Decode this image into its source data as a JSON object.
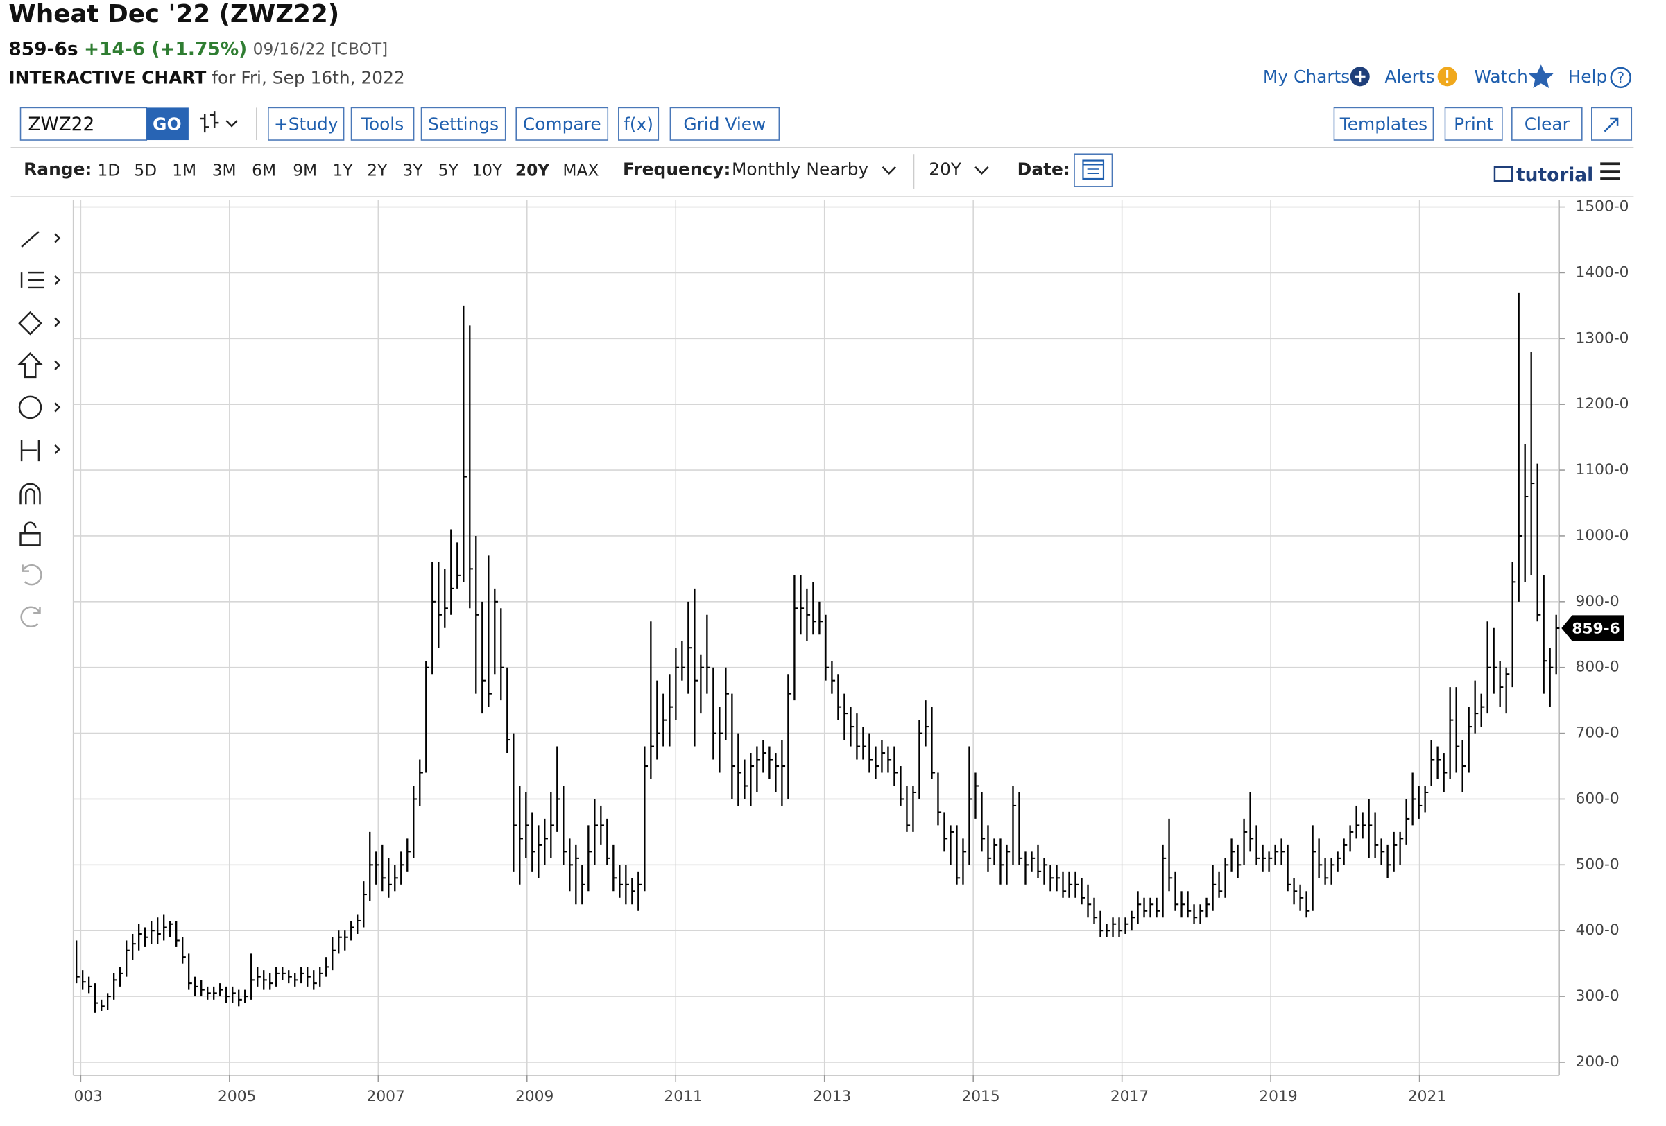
{
  "header": {
    "title": "Wheat Dec '22 (ZWZ22)",
    "price": "859-6s",
    "change": "+14-6 (+1.75%)",
    "meta": "09/16/22 [CBOT]",
    "chart_label": "INTERACTIVE CHART",
    "chart_date": "for Fri, Sep 16th, 2022"
  },
  "top_links": [
    "My Charts",
    "Alerts",
    "Watch",
    "Help"
  ],
  "toolbar": {
    "symbol": "ZWZ22",
    "go": "GO",
    "buttons": [
      "+Study",
      "Tools",
      "Settings",
      "Compare",
      "f(x)",
      "Grid View"
    ],
    "right_buttons": [
      "Templates",
      "Print",
      "Clear"
    ]
  },
  "range_bar": {
    "label": "Range:",
    "ranges": [
      "1D",
      "5D",
      "1M",
      "3M",
      "6M",
      "9M",
      "1Y",
      "2Y",
      "3Y",
      "5Y",
      "10Y",
      "20Y",
      "MAX"
    ],
    "active": "20Y",
    "frequency_label": "Frequency:",
    "frequency": "Monthly Nearby",
    "period": "20Y",
    "date_label": "Date:",
    "tutorial": "tutorial"
  },
  "chart_data": {
    "type": "ohlc",
    "color": "#000000",
    "grid": true,
    "xlim": [
      2002.9,
      2022.88
    ],
    "xticks": [
      {
        "value": 2003,
        "label": "003"
      },
      2005,
      2007,
      2009,
      2011,
      2013,
      2015,
      2017,
      2019,
      2021
    ],
    "ylim": [
      180,
      1510
    ],
    "yticks": [
      {
        "value": 200,
        "label": "200-0"
      },
      {
        "value": 300,
        "label": "300-0"
      },
      {
        "value": 400,
        "label": "400-0"
      },
      {
        "value": 500,
        "label": "500-0"
      },
      {
        "value": 600,
        "label": "600-0"
      },
      {
        "value": 700,
        "label": "700-0"
      },
      {
        "value": 800,
        "label": "800-0"
      },
      {
        "value": 900,
        "label": "900-0"
      },
      {
        "value": 1000,
        "label": "1000-0"
      },
      {
        "value": 1100,
        "label": "1100-0"
      },
      {
        "value": 1200,
        "label": "1200-0"
      },
      {
        "value": 1300,
        "label": "1300-0"
      },
      {
        "value": 1400,
        "label": "1400-0"
      },
      {
        "value": 1500,
        "label": "1500-0"
      }
    ],
    "high": [
      385,
      340,
      330,
      320,
      295,
      305,
      335,
      345,
      385,
      395,
      410,
      405,
      415,
      420,
      425,
      415,
      415,
      390,
      365,
      330,
      325,
      315,
      315,
      320,
      315,
      315,
      310,
      310,
      365,
      345,
      340,
      335,
      345,
      345,
      340,
      335,
      345,
      345,
      340,
      345,
      360,
      390,
      400,
      400,
      415,
      425,
      475,
      550,
      520,
      530,
      510,
      500,
      520,
      540,
      620,
      660,
      810,
      960,
      960,
      950,
      1010,
      990,
      1350,
      1320,
      1000,
      900,
      970,
      920,
      890,
      800,
      700,
      620,
      610,
      580,
      560,
      570,
      610,
      680,
      620,
      540,
      530,
      500,
      560,
      600,
      590,
      570,
      530,
      500,
      500,
      480,
      490,
      680,
      870,
      780,
      760,
      790,
      830,
      840,
      900,
      920,
      820,
      880,
      800,
      740,
      800,
      760,
      700,
      660,
      670,
      680,
      690,
      680,
      670,
      690,
      790,
      940,
      940,
      920,
      930,
      900,
      880,
      810,
      790,
      760,
      740,
      730,
      710,
      700,
      680,
      690,
      680,
      680,
      650,
      620,
      620,
      720,
      750,
      740,
      640,
      580,
      560,
      560,
      540,
      680,
      640,
      610,
      560,
      540,
      540,
      530,
      620,
      610,
      520,
      520,
      530,
      510,
      500,
      500,
      490,
      490,
      490,
      480,
      470,
      450,
      430,
      410,
      420,
      420,
      420,
      430,
      460,
      450,
      450,
      450,
      530,
      570,
      490,
      460,
      460,
      440,
      440,
      450,
      500,
      490,
      510,
      540,
      530,
      570,
      610,
      560,
      530,
      520,
      530,
      540,
      530,
      480,
      470,
      460,
      560,
      540,
      510,
      510,
      520,
      540,
      560,
      590,
      580,
      600,
      580,
      540,
      530,
      550,
      550,
      600,
      640,
      620,
      620,
      690,
      680,
      670,
      770,
      770,
      690,
      740,
      780,
      760,
      870,
      860,
      810,
      800,
      960,
      1370,
      1140,
      1280,
      1110,
      940,
      830,
      880
    ],
    "low": [
      320,
      310,
      305,
      275,
      278,
      280,
      295,
      315,
      330,
      355,
      370,
      375,
      380,
      380,
      385,
      390,
      375,
      350,
      310,
      300,
      300,
      295,
      295,
      300,
      290,
      290,
      285,
      290,
      295,
      315,
      310,
      310,
      315,
      325,
      320,
      315,
      320,
      315,
      310,
      315,
      330,
      340,
      365,
      370,
      385,
      395,
      405,
      445,
      470,
      460,
      450,
      460,
      470,
      490,
      510,
      590,
      640,
      790,
      830,
      860,
      880,
      920,
      930,
      890,
      760,
      730,
      740,
      790,
      750,
      670,
      490,
      470,
      510,
      490,
      480,
      500,
      510,
      550,
      500,
      460,
      440,
      440,
      460,
      500,
      530,
      500,
      460,
      450,
      440,
      440,
      430,
      460,
      630,
      660,
      680,
      680,
      720,
      780,
      760,
      680,
      730,
      760,
      660,
      640,
      690,
      600,
      590,
      600,
      590,
      610,
      640,
      630,
      610,
      590,
      600,
      750,
      850,
      840,
      850,
      850,
      780,
      760,
      720,
      690,
      680,
      660,
      660,
      640,
      630,
      640,
      640,
      620,
      590,
      550,
      550,
      600,
      680,
      630,
      560,
      520,
      500,
      470,
      470,
      500,
      570,
      520,
      490,
      500,
      470,
      470,
      500,
      500,
      470,
      490,
      480,
      470,
      460,
      460,
      450,
      450,
      450,
      440,
      420,
      410,
      390,
      390,
      390,
      390,
      395,
      400,
      410,
      420,
      420,
      420,
      420,
      460,
      430,
      420,
      420,
      410,
      410,
      420,
      430,
      450,
      450,
      490,
      480,
      500,
      520,
      500,
      490,
      490,
      500,
      500,
      460,
      440,
      430,
      420,
      430,
      480,
      470,
      470,
      490,
      500,
      520,
      540,
      540,
      510,
      510,
      500,
      480,
      490,
      500,
      530,
      560,
      570,
      580,
      620,
      630,
      610,
      630,
      640,
      610,
      640,
      700,
      710,
      730,
      760,
      740,
      730,
      770,
      900,
      930,
      940,
      870,
      760,
      740,
      790
    ],
    "close": [
      330,
      322,
      315,
      290,
      285,
      300,
      325,
      335,
      370,
      380,
      395,
      390,
      400,
      395,
      405,
      410,
      385,
      360,
      320,
      315,
      310,
      305,
      305,
      310,
      300,
      305,
      295,
      300,
      325,
      330,
      325,
      320,
      335,
      335,
      330,
      325,
      335,
      330,
      320,
      335,
      345,
      370,
      390,
      390,
      405,
      415,
      455,
      500,
      500,
      480,
      470,
      480,
      500,
      520,
      600,
      640,
      800,
      900,
      880,
      890,
      920,
      940,
      1090,
      950,
      880,
      780,
      760,
      900,
      800,
      690,
      560,
      540,
      560,
      520,
      530,
      540,
      560,
      600,
      520,
      500,
      510,
      470,
      520,
      560,
      560,
      510,
      480,
      470,
      470,
      460,
      470,
      650,
      680,
      700,
      720,
      740,
      800,
      800,
      830,
      780,
      800,
      800,
      700,
      700,
      760,
      650,
      640,
      620,
      650,
      660,
      670,
      660,
      650,
      650,
      760,
      890,
      890,
      880,
      870,
      870,
      800,
      780,
      740,
      730,
      710,
      680,
      680,
      660,
      650,
      670,
      660,
      640,
      600,
      560,
      610,
      700,
      710,
      640,
      580,
      540,
      550,
      480,
      520,
      600,
      620,
      540,
      510,
      530,
      500,
      520,
      590,
      510,
      500,
      510,
      490,
      500,
      480,
      480,
      460,
      470,
      470,
      450,
      440,
      420,
      400,
      400,
      410,
      400,
      410,
      420,
      440,
      430,
      440,
      430,
      510,
      480,
      440,
      440,
      430,
      420,
      430,
      440,
      470,
      460,
      500,
      520,
      500,
      550,
      540,
      510,
      510,
      510,
      520,
      520,
      470,
      460,
      450,
      430,
      520,
      500,
      480,
      500,
      510,
      530,
      550,
      560,
      560,
      560,
      530,
      520,
      500,
      530,
      540,
      570,
      600,
      590,
      610,
      660,
      660,
      640,
      720,
      680,
      650,
      710,
      730,
      740,
      800,
      800,
      770,
      790,
      930,
      1000,
      1060,
      1080,
      880,
      810,
      800,
      859.75
    ],
    "last_price": {
      "value": 859.75,
      "label": "859-6"
    }
  }
}
